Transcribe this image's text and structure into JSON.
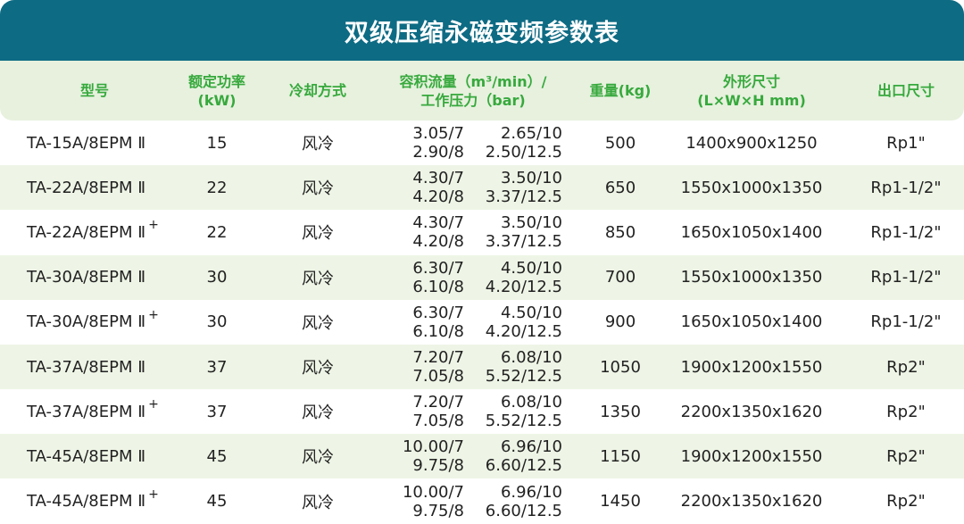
{
  "title": "双级压缩永磁变频参数表",
  "headers": {
    "model": "型号",
    "power": [
      "额定功率",
      "(kW)"
    ],
    "cooling": "冷却方式",
    "flow": [
      "容积流量（m³/min）/",
      "工作压力（bar)"
    ],
    "weight": "重量(kg)",
    "dims": [
      "外形尺寸",
      "(L×W×H mm)"
    ],
    "outlet": "出口尺寸"
  },
  "rows": [
    {
      "model": "TA-15A/8EPM Ⅱ",
      "plus": "",
      "power": "15",
      "cooling": "风冷",
      "flow": [
        "3.05/7",
        "2.90/8",
        "2.65/10",
        "2.50/12.5"
      ],
      "weight": "500",
      "dims": "1400x900x1250",
      "outlet": "Rp1\""
    },
    {
      "model": "TA-22A/8EPM Ⅱ",
      "plus": "",
      "power": "22",
      "cooling": "风冷",
      "flow": [
        "4.30/7",
        "4.20/8",
        "3.50/10",
        "3.37/12.5"
      ],
      "weight": "650",
      "dims": "1550x1000x1350",
      "outlet": "Rp1-1/2\""
    },
    {
      "model": "TA-22A/8EPM Ⅱ",
      "plus": "+",
      "power": "22",
      "cooling": "风冷",
      "flow": [
        "4.30/7",
        "4.20/8",
        "3.50/10",
        "3.37/12.5"
      ],
      "weight": "850",
      "dims": "1650x1050x1400",
      "outlet": "Rp1-1/2\""
    },
    {
      "model": "TA-30A/8EPM Ⅱ",
      "plus": "",
      "power": "30",
      "cooling": "风冷",
      "flow": [
        "6.30/7",
        "6.10/8",
        "4.50/10",
        "4.20/12.5"
      ],
      "weight": "700",
      "dims": "1550x1000x1350",
      "outlet": "Rp1-1/2\""
    },
    {
      "model": "TA-30A/8EPM Ⅱ",
      "plus": "+",
      "power": "30",
      "cooling": "风冷",
      "flow": [
        "6.30/7",
        "6.10/8",
        "4.50/10",
        "4.20/12.5"
      ],
      "weight": "900",
      "dims": "1650x1050x1400",
      "outlet": "Rp1-1/2\""
    },
    {
      "model": "TA-37A/8EPM Ⅱ",
      "plus": "",
      "power": "37",
      "cooling": "风冷",
      "flow": [
        "7.20/7",
        "7.05/8",
        "6.08/10",
        "5.52/12.5"
      ],
      "weight": "1050",
      "dims": "1900x1200x1550",
      "outlet": "Rp2\""
    },
    {
      "model": "TA-37A/8EPM Ⅱ",
      "plus": "+",
      "power": "37",
      "cooling": "风冷",
      "flow": [
        "7.20/7",
        "7.05/8",
        "6.08/10",
        "5.52/12.5"
      ],
      "weight": "1350",
      "dims": "2200x1350x1620",
      "outlet": "Rp2\""
    },
    {
      "model": "TA-45A/8EPM Ⅱ",
      "plus": "",
      "power": "45",
      "cooling": "风冷",
      "flow": [
        "10.00/7",
        "9.75/8",
        "6.96/10",
        "6.60/12.5"
      ],
      "weight": "1150",
      "dims": "1900x1200x1550",
      "outlet": "Rp2\""
    },
    {
      "model": "TA-45A/8EPM Ⅱ",
      "plus": "+",
      "power": "45",
      "cooling": "风冷",
      "flow": [
        "10.00/7",
        "9.75/8",
        "6.96/10",
        "6.60/12.5"
      ],
      "weight": "1450",
      "dims": "2200x1350x1620",
      "outlet": "Rp2\""
    }
  ]
}
